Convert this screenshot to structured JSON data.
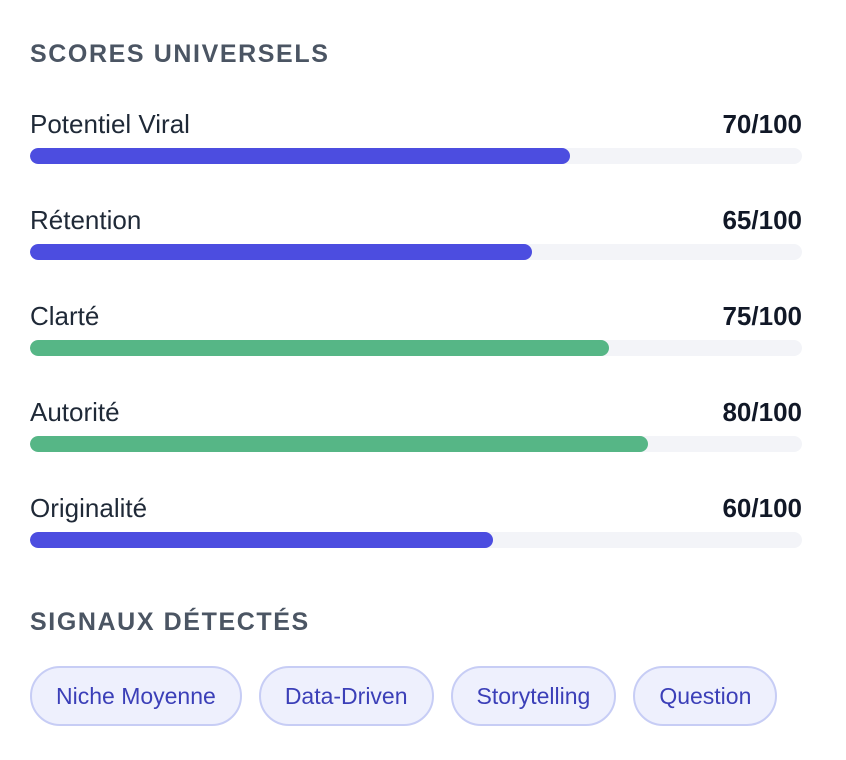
{
  "scores": {
    "title": "SCORES UNIVERSELS",
    "items": [
      {
        "label": "Potentiel Viral",
        "value_text": "70/100",
        "value": 70,
        "color": "#4c4de0"
      },
      {
        "label": "Rétention",
        "value_text": "65/100",
        "value": 65,
        "color": "#4c4de0"
      },
      {
        "label": "Clarté",
        "value_text": "75/100",
        "value": 75,
        "color": "#56b686"
      },
      {
        "label": "Autorité",
        "value_text": "80/100",
        "value": 80,
        "color": "#56b686"
      },
      {
        "label": "Originalité",
        "value_text": "60/100",
        "value": 60,
        "color": "#4c4de0"
      }
    ]
  },
  "signals": {
    "title": "SIGNAUX DÉTECTÉS",
    "tags": [
      "Niche Moyenne",
      "Data-Driven",
      "Storytelling",
      "Question"
    ]
  }
}
